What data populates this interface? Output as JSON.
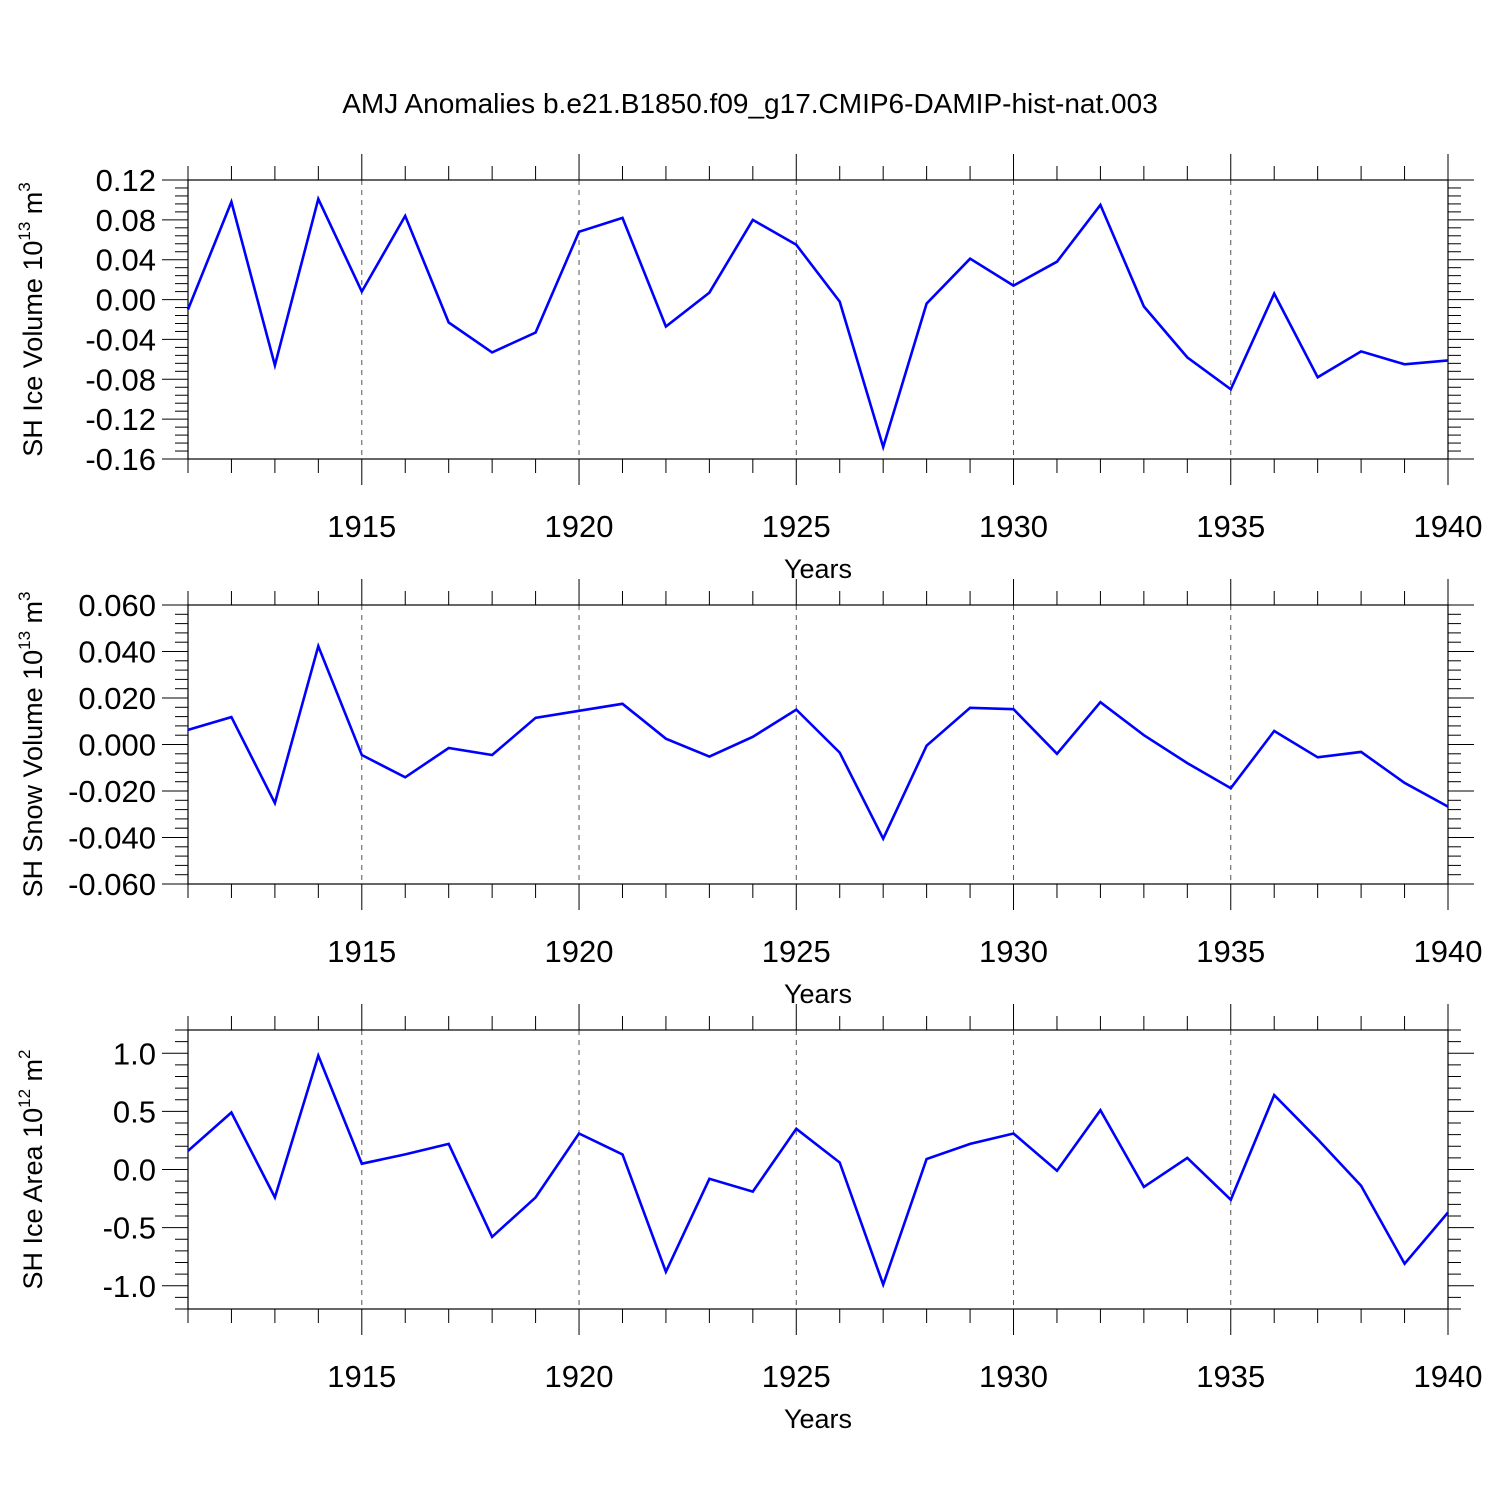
{
  "title": "AMJ Anomalies b.e21.B1850.f09_g17.CMIP6-DAMIP-hist-nat.003",
  "chart_data": [
    {
      "type": "line",
      "ylabel": "SH Ice Volume 10",
      "ylabel_sup": "13",
      "ylabel_unit": " m",
      "ylabel_unit_sup": "3",
      "xlabel": "Years",
      "xlim": [
        1911,
        1940
      ],
      "ylim": [
        -0.16,
        0.12
      ],
      "yticks": [
        0.12,
        0.08,
        0.04,
        0.0,
        -0.04,
        -0.08,
        -0.12,
        -0.16
      ],
      "ytick_labels": [
        "0.12",
        "0.08",
        "0.04",
        "0.00",
        "-0.04",
        "-0.08",
        "-0.12",
        "-0.16"
      ],
      "xticks": [
        1915,
        1920,
        1925,
        1930,
        1935,
        1940
      ],
      "xtick_labels": [
        "1915",
        "1920",
        "1925",
        "1930",
        "1935",
        "1940"
      ],
      "grid": "vertical dashed at labeled years",
      "line_color": "#0000ff",
      "x": [
        1911,
        1912,
        1913,
        1914,
        1915,
        1916,
        1917,
        1918,
        1919,
        1920,
        1921,
        1922,
        1923,
        1924,
        1925,
        1926,
        1927,
        1928,
        1929,
        1930,
        1931,
        1932,
        1933,
        1934,
        1935,
        1936,
        1937,
        1938,
        1939,
        1940
      ],
      "values": [
        -0.01,
        0.098,
        -0.066,
        0.101,
        0.008,
        0.084,
        -0.023,
        -0.053,
        -0.033,
        0.068,
        0.082,
        -0.027,
        0.007,
        0.08,
        0.055,
        -0.002,
        -0.148,
        -0.004,
        0.041,
        0.014,
        0.038,
        0.095,
        -0.007,
        -0.058,
        -0.09,
        0.006,
        -0.078,
        -0.052,
        -0.065,
        -0.061
      ]
    },
    {
      "type": "line",
      "ylabel": "SH Snow Volume 10",
      "ylabel_sup": "13",
      "ylabel_unit": " m",
      "ylabel_unit_sup": "3",
      "xlabel": "Years",
      "xlim": [
        1911,
        1940
      ],
      "ylim": [
        -0.06,
        0.06
      ],
      "yticks": [
        0.06,
        0.04,
        0.02,
        0.0,
        -0.02,
        -0.04,
        -0.06
      ],
      "ytick_labels": [
        "0.060",
        "0.040",
        "0.020",
        "0.000",
        "-0.020",
        "-0.040",
        "-0.060"
      ],
      "xticks": [
        1915,
        1920,
        1925,
        1930,
        1935,
        1940
      ],
      "xtick_labels": [
        "1915",
        "1920",
        "1925",
        "1930",
        "1935",
        "1940"
      ],
      "grid": "vertical dashed at labeled years",
      "line_color": "#0000ff",
      "x": [
        1911,
        1912,
        1913,
        1914,
        1915,
        1916,
        1917,
        1918,
        1919,
        1920,
        1921,
        1922,
        1923,
        1924,
        1925,
        1926,
        1927,
        1928,
        1929,
        1930,
        1931,
        1932,
        1933,
        1934,
        1935,
        1936,
        1937,
        1938,
        1939,
        1940
      ],
      "values": [
        0.0063,
        0.0118,
        -0.0252,
        0.0423,
        -0.0045,
        -0.0141,
        -0.0015,
        -0.0045,
        0.0115,
        0.0145,
        0.0175,
        0.0025,
        -0.0052,
        0.0033,
        0.015,
        -0.0035,
        -0.0405,
        -0.0005,
        0.0158,
        0.0152,
        -0.004,
        0.0182,
        0.004,
        -0.008,
        -0.0188,
        0.0058,
        -0.0055,
        -0.0032,
        -0.0165,
        -0.0267
      ]
    },
    {
      "type": "line",
      "ylabel": "SH Ice Area 10",
      "ylabel_sup": "12",
      "ylabel_unit": " m",
      "ylabel_unit_sup": "2",
      "xlabel": "Years",
      "xlim": [
        1911,
        1940
      ],
      "ylim": [
        -1.2,
        1.2
      ],
      "yticks": [
        1.0,
        0.5,
        0.0,
        -0.5,
        -1.0
      ],
      "ytick_labels": [
        "1.0",
        "0.5",
        "0.0",
        "-0.5",
        "-1.0"
      ],
      "xticks": [
        1915,
        1920,
        1925,
        1930,
        1935,
        1940
      ],
      "xtick_labels": [
        "1915",
        "1920",
        "1925",
        "1930",
        "1935",
        "1940"
      ],
      "grid": "vertical dashed at labeled years",
      "line_color": "#0000ff",
      "x": [
        1911,
        1912,
        1913,
        1914,
        1915,
        1916,
        1917,
        1918,
        1919,
        1920,
        1921,
        1922,
        1923,
        1924,
        1925,
        1926,
        1927,
        1928,
        1929,
        1930,
        1931,
        1932,
        1933,
        1934,
        1935,
        1936,
        1937,
        1938,
        1939,
        1940
      ],
      "values": [
        0.16,
        0.49,
        -0.24,
        0.98,
        0.05,
        0.13,
        0.22,
        -0.58,
        -0.24,
        0.31,
        0.13,
        -0.88,
        -0.08,
        -0.19,
        0.35,
        0.06,
        -0.99,
        0.09,
        0.22,
        0.31,
        -0.01,
        0.51,
        -0.15,
        0.1,
        -0.26,
        0.64,
        0.26,
        -0.14,
        -0.81,
        -0.37
      ]
    }
  ]
}
